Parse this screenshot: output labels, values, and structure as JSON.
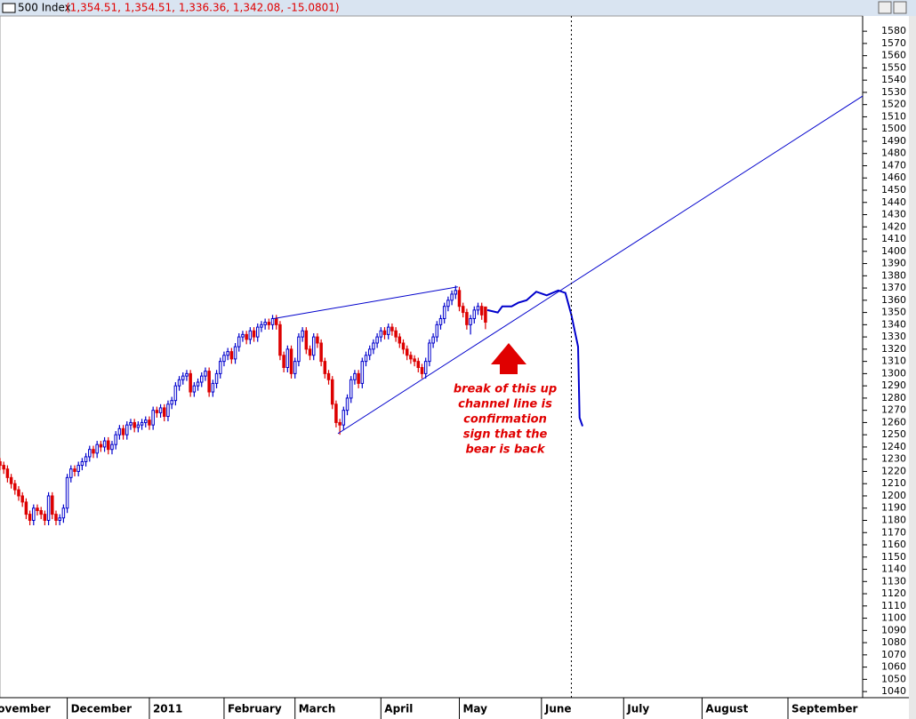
{
  "chart_data": {
    "type": "candlestick",
    "header_name": "500 Index",
    "header_values": "(1,354.51, 1,354.51, 1,336.36, 1,342.08, -15.0801)",
    "annotation": [
      "break of this up",
      "channel line is",
      "confirmation",
      "sign that the",
      "bear is back"
    ],
    "up_color": "#0000cc",
    "down_color": "#dd0000",
    "line_color": "#0000cc",
    "ylim": [
      1035,
      1591
    ],
    "yticks": [
      1040,
      1050,
      1060,
      1070,
      1080,
      1090,
      1100,
      1110,
      1120,
      1130,
      1140,
      1150,
      1160,
      1170,
      1180,
      1190,
      1200,
      1210,
      1220,
      1230,
      1240,
      1250,
      1260,
      1270,
      1280,
      1290,
      1300,
      1310,
      1320,
      1330,
      1340,
      1350,
      1360,
      1370,
      1380,
      1390,
      1400,
      1410,
      1420,
      1430,
      1440,
      1450,
      1460,
      1470,
      1480,
      1490,
      1500,
      1510,
      1520,
      1530,
      1540,
      1550,
      1560,
      1570,
      1580
    ],
    "xlim": [
      0,
      231
    ],
    "xticks": [
      {
        "value": -4,
        "label": "November"
      },
      {
        "value": 18,
        "label": "December"
      },
      {
        "value": 40,
        "label": "2011"
      },
      {
        "value": 60,
        "label": "February"
      },
      {
        "value": 79,
        "label": "March"
      },
      {
        "value": 102,
        "label": "April"
      },
      {
        "value": 123,
        "label": "May"
      },
      {
        "value": 145,
        "label": "June"
      },
      {
        "value": 167,
        "label": "July"
      },
      {
        "value": 188,
        "label": "August"
      },
      {
        "value": 211,
        "label": "September"
      }
    ],
    "open": [
      1228,
      1225,
      1222,
      1215,
      1210,
      1205,
      1200,
      1195,
      1185,
      1180,
      1190,
      1188,
      1185,
      1180,
      1200,
      1185,
      1180,
      1182,
      1190,
      1215,
      1222,
      1220,
      1225,
      1228,
      1232,
      1238,
      1235,
      1242,
      1240,
      1245,
      1238,
      1242,
      1250,
      1255,
      1250,
      1258,
      1260,
      1256,
      1258,
      1260,
      1262,
      1258,
      1270,
      1268,
      1272,
      1265,
      1275,
      1278,
      1290,
      1295,
      1298,
      1300,
      1285,
      1290,
      1293,
      1298,
      1302,
      1285,
      1292,
      1300,
      1310,
      1315,
      1318,
      1312,
      1322,
      1330,
      1332,
      1328,
      1335,
      1330,
      1338,
      1340,
      1342,
      1340,
      1345,
      1340,
      1315,
      1305,
      1320,
      1300,
      1310,
      1330,
      1335,
      1320,
      1315,
      1330,
      1325,
      1310,
      1300,
      1295,
      1275,
      1260,
      1258,
      1270,
      1280,
      1295,
      1300,
      1292,
      1310,
      1315,
      1320,
      1325,
      1330,
      1335,
      1332,
      1338,
      1335,
      1330,
      1325,
      1320,
      1315,
      1312,
      1310,
      1305,
      1300,
      1310,
      1325,
      1330,
      1340,
      1345,
      1355,
      1360,
      1365,
      1368,
      1355,
      1350,
      1340,
      1345,
      1352,
      1355,
      1354.51
    ],
    "high": [
      1231,
      1228,
      1225,
      1218,
      1213,
      1208,
      1203,
      1198,
      1188,
      1193,
      1193,
      1191,
      1188,
      1203,
      1203,
      1188,
      1185,
      1193,
      1218,
      1225,
      1225,
      1228,
      1231,
      1235,
      1241,
      1241,
      1245,
      1245,
      1248,
      1248,
      1245,
      1253,
      1258,
      1258,
      1261,
      1263,
      1263,
      1261,
      1263,
      1265,
      1265,
      1273,
      1273,
      1275,
      1275,
      1278,
      1281,
      1293,
      1298,
      1301,
      1303,
      1303,
      1293,
      1296,
      1301,
      1305,
      1305,
      1295,
      1303,
      1313,
      1318,
      1321,
      1321,
      1325,
      1333,
      1335,
      1335,
      1338,
      1338,
      1341,
      1343,
      1345,
      1345,
      1348,
      1348,
      1343,
      1318,
      1323,
      1323,
      1313,
      1333,
      1338,
      1338,
      1323,
      1333,
      1333,
      1328,
      1313,
      1303,
      1298,
      1278,
      1263,
      1273,
      1283,
      1298,
      1303,
      1303,
      1313,
      1318,
      1323,
      1328,
      1333,
      1338,
      1338,
      1341,
      1341,
      1338,
      1333,
      1328,
      1323,
      1318,
      1315,
      1313,
      1308,
      1313,
      1328,
      1333,
      1343,
      1348,
      1358,
      1363,
      1368,
      1372,
      1371,
      1358,
      1353,
      1348,
      1355,
      1358,
      1358,
      1354.51
    ],
    "low": [
      1221,
      1218,
      1211,
      1206,
      1201,
      1196,
      1191,
      1181,
      1176,
      1176,
      1184,
      1181,
      1176,
      1176,
      1181,
      1176,
      1176,
      1178,
      1186,
      1211,
      1216,
      1216,
      1221,
      1224,
      1228,
      1231,
      1231,
      1236,
      1236,
      1234,
      1234,
      1238,
      1246,
      1246,
      1246,
      1254,
      1252,
      1252,
      1254,
      1256,
      1254,
      1254,
      1264,
      1264,
      1261,
      1261,
      1271,
      1274,
      1286,
      1291,
      1294,
      1281,
      1281,
      1286,
      1289,
      1294,
      1281,
      1281,
      1288,
      1296,
      1306,
      1311,
      1308,
      1308,
      1318,
      1326,
      1324,
      1324,
      1326,
      1326,
      1334,
      1336,
      1336,
      1336,
      1336,
      1311,
      1301,
      1301,
      1296,
      1296,
      1306,
      1326,
      1316,
      1311,
      1311,
      1321,
      1306,
      1296,
      1291,
      1271,
      1256,
      1250,
      1254,
      1266,
      1276,
      1291,
      1288,
      1288,
      1306,
      1311,
      1316,
      1321,
      1326,
      1328,
      1328,
      1331,
      1326,
      1321,
      1316,
      1311,
      1308,
      1306,
      1301,
      1296,
      1296,
      1306,
      1321,
      1326,
      1336,
      1341,
      1351,
      1356,
      1361,
      1351,
      1346,
      1336,
      1332,
      1341,
      1348,
      1344,
      1336.36
    ],
    "close": [
      1225,
      1222,
      1215,
      1210,
      1205,
      1200,
      1195,
      1185,
      1180,
      1190,
      1188,
      1185,
      1180,
      1200,
      1185,
      1180,
      1182,
      1190,
      1215,
      1222,
      1220,
      1225,
      1228,
      1232,
      1238,
      1235,
      1242,
      1240,
      1245,
      1238,
      1242,
      1250,
      1255,
      1250,
      1258,
      1260,
      1256,
      1258,
      1260,
      1262,
      1258,
      1270,
      1268,
      1272,
      1265,
      1275,
      1278,
      1290,
      1295,
      1298,
      1300,
      1285,
      1290,
      1293,
      1298,
      1302,
      1285,
      1292,
      1300,
      1310,
      1315,
      1318,
      1312,
      1322,
      1330,
      1332,
      1328,
      1335,
      1330,
      1338,
      1340,
      1342,
      1340,
      1345,
      1340,
      1315,
      1305,
      1320,
      1300,
      1310,
      1330,
      1335,
      1320,
      1315,
      1330,
      1325,
      1310,
      1300,
      1295,
      1275,
      1260,
      1258,
      1270,
      1280,
      1295,
      1300,
      1292,
      1310,
      1315,
      1320,
      1325,
      1330,
      1335,
      1332,
      1338,
      1335,
      1330,
      1325,
      1320,
      1315,
      1312,
      1310,
      1305,
      1300,
      1310,
      1325,
      1330,
      1340,
      1345,
      1355,
      1360,
      1365,
      1368,
      1355,
      1350,
      1340,
      1345,
      1352,
      1355,
      1348,
      1342.08
    ],
    "lines": [
      {
        "x": [
          73.3,
          122.6
        ],
        "y": [
          1345,
          1371
        ]
      },
      {
        "x": [
          90.5,
          231
        ],
        "y": [
          1251,
          1527
        ]
      },
      {
        "x": [
          130.5,
          133.3,
          134.5,
          137,
          138.8,
          141,
          143.6,
          146.4,
          149.5,
          151.4,
          153,
          154.8,
          155.2,
          156
        ],
        "y": [
          1352,
          1350,
          1355,
          1355,
          1358,
          1360,
          1367,
          1364,
          1368,
          1366,
          1348,
          1322,
          1264,
          1257
        ]
      }
    ],
    "vline": 153
  }
}
